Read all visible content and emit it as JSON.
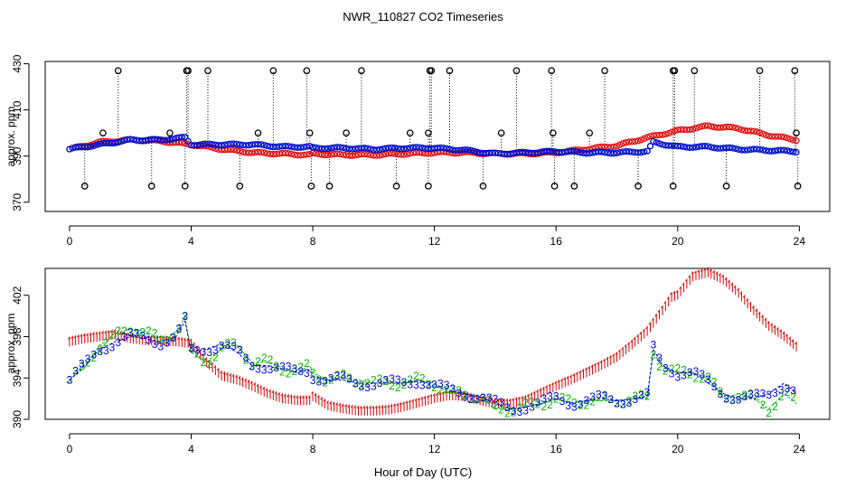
{
  "chart_data": {
    "title": "NWR_110827  CO2 Timeseries",
    "xlabel": "Hour of Day (UTC)",
    "xlim": [
      -0.8,
      25
    ],
    "xticks": [
      "0",
      "4",
      "8",
      "12",
      "16",
      "20",
      "24"
    ],
    "colors": {
      "red": "#e00000",
      "green": "#00b400",
      "blue": "#0000e0",
      "black": "#000000",
      "cyan": "#00c8c8"
    },
    "panels": [
      {
        "type": "scatter",
        "ylabel": "approx. ppm",
        "ylim": [
          366,
          431
        ],
        "yticks": [
          "370",
          "390",
          "410",
          "430"
        ],
        "series": [
          {
            "name": "red",
            "marker": "circle",
            "x": [
              0,
              1,
              2,
              3,
              4,
              5,
              6,
              7,
              7.9,
              8,
              9,
              10,
              11,
              12,
              13,
              14,
              15,
              16,
              17,
              18,
              19,
              20,
              21,
              22,
              23,
              23.9
            ],
            "y": [
              393,
              396,
              397,
              396.5,
              395,
              393,
              391.5,
              391,
              390.5,
              391,
              390.5,
              390.5,
              391,
              391.5,
              391.5,
              391,
              391,
              391.5,
              393,
              394.5,
              398,
              401,
              403,
              402,
              399,
              397
            ]
          },
          {
            "name": "green",
            "marker": "circle",
            "x": [
              0,
              1,
              2,
              3,
              3.8,
              4,
              5,
              6,
              7,
              7.9,
              8,
              9,
              10,
              11,
              12,
              13,
              14,
              15,
              16,
              17,
              18,
              19,
              19.2,
              20,
              21,
              22,
              23,
              23.9
            ],
            "y": [
              393,
              395,
              397,
              397,
              398,
              395,
              395,
              395,
              394,
              394,
              393.5,
              393.5,
              393,
              393.5,
              393.5,
              392.5,
              391,
              391.5,
              392,
              391.5,
              391.5,
              392,
              396,
              394,
              394,
              393,
              392.5,
              392
            ]
          },
          {
            "name": "blue",
            "marker": "circle",
            "x": [
              0,
              1,
              2,
              3,
              3.8,
              4,
              5,
              6,
              7,
              7.9,
              8,
              9,
              10,
              11,
              12,
              13,
              14,
              15,
              16,
              17,
              18,
              19,
              19.2,
              20,
              21,
              22,
              23,
              23.9
            ],
            "y": [
              393,
              395,
              397,
              397,
              398,
              395,
              395,
              395,
              394,
              394,
              393.5,
              393.5,
              393,
              393.5,
              393.5,
              392.5,
              391,
              391.5,
              392,
              391.5,
              391.5,
              392,
              396,
              394,
              394,
              393,
              392.5,
              392
            ]
          },
          {
            "name": "spikes",
            "marker": "circle-black",
            "x": [
              1.6,
              3.85,
              3.9,
              4.55,
              6.7,
              7.8,
              9.6,
              11.85,
              11.9,
              12.5,
              14.7,
              15.85,
              17.6,
              19.85,
              19.9,
              20.55,
              22.7,
              23.85
            ],
            "y": [
              427,
              427,
              427,
              427,
              427,
              427,
              427,
              427,
              427,
              427,
              427,
              427,
              427,
              427,
              427,
              427,
              427,
              427
            ]
          },
          {
            "name": "spikes-mid",
            "marker": "circle-black",
            "x": [
              1.1,
              3.3,
              6.2,
              7.9,
              9.1,
              11.2,
              11.8,
              14.2,
              15.9,
              17.1,
              23.9
            ],
            "y": [
              400,
              400,
              400,
              400,
              400,
              400,
              400,
              400,
              400,
              400,
              400
            ]
          },
          {
            "name": "spikes-low",
            "marker": "circle-black",
            "x": [
              0.5,
              2.7,
              3.8,
              5.6,
              7.95,
              8.55,
              10.75,
              11.8,
              13.6,
              15.95,
              16.6,
              18.7,
              19.85,
              21.6,
              23.95
            ],
            "y": [
              377,
              377,
              377,
              377,
              377,
              377,
              377,
              377,
              377,
              377,
              377,
              377,
              377,
              377,
              377
            ]
          }
        ]
      },
      {
        "type": "scatter",
        "ylabel": "approx. ppm",
        "ylim": [
          390,
          404.6
        ],
        "yticks": [
          "390",
          "394",
          "398",
          "402"
        ],
        "series": [
          {
            "name": "red",
            "marker": "1",
            "x": [
              0,
              0.5,
              1,
              1.5,
              2,
              2.5,
              3,
              3.5,
              4,
              4.5,
              5,
              5.5,
              6,
              6.5,
              7,
              7.5,
              7.9,
              8,
              8.5,
              9,
              9.5,
              10,
              10.5,
              11,
              11.5,
              12,
              12.5,
              13,
              13.5,
              14,
              14.5,
              15,
              15.5,
              16,
              16.5,
              17,
              17.5,
              18,
              18.5,
              19,
              19.5,
              19.8,
              20,
              20.5,
              21,
              21.5,
              22,
              22.5,
              23,
              23.5,
              23.9
            ],
            "y": [
              397.5,
              397.8,
              398,
              398.2,
              397.8,
              397.6,
              397.6,
              397.5,
              397.3,
              395.5,
              394.2,
              393.8,
              393.2,
              392.5,
              392,
              391.8,
              391.8,
              392.2,
              391.3,
              391,
              390.8,
              390.8,
              390.9,
              391.2,
              391.6,
              392,
              392.3,
              392.2,
              391.8,
              391.5,
              391.5,
              391.8,
              392.5,
              393.2,
              393.8,
              394.5,
              395.2,
              396,
              397.2,
              398.5,
              400.5,
              401.8,
              402,
              403.8,
              404.2,
              403.5,
              402.2,
              400.5,
              399,
              398,
              397
            ]
          },
          {
            "name": "green",
            "marker": "2",
            "x": [
              0,
              0.5,
              1,
              1.5,
              2,
              2.5,
              3,
              3.5,
              3.8,
              4,
              4.5,
              5,
              5.5,
              6,
              6.5,
              7,
              7.5,
              7.9,
              8,
              8.5,
              9,
              9.5,
              10,
              10.5,
              11,
              11.5,
              12,
              12.5,
              13,
              13.5,
              14,
              14.5,
              15,
              15.5,
              16,
              16.5,
              17,
              17.5,
              18,
              18.5,
              19,
              19.2,
              19.5,
              20,
              20.5,
              21,
              21.5,
              22,
              22.5,
              23,
              23.5,
              23.9
            ],
            "y": [
              393.8,
              395,
              397.2,
              398,
              398.8,
              398.5,
              397.5,
              398.5,
              399.8,
              396.5,
              395.5,
              396.8,
              397.2,
              395.5,
              395.5,
              395,
              394.5,
              395.2,
              394.5,
              393.8,
              394,
              393.8,
              393.5,
              393.5,
              393.5,
              393.8,
              393.5,
              392.5,
              392.5,
              392.2,
              391,
              391,
              391.2,
              391.5,
              392,
              391.5,
              391.8,
              391.8,
              391.8,
              392,
              392,
              396.5,
              395,
              394.5,
              394.5,
              394,
              392,
              392.5,
              392,
              391,
              392.5,
              391.5
            ]
          },
          {
            "name": "blue",
            "marker": "3",
            "x": [
              0,
              0.5,
              1,
              1.5,
              2,
              2.5,
              3,
              3.5,
              3.8,
              4,
              4.5,
              5,
              5.5,
              6,
              6.5,
              7,
              7.5,
              7.9,
              8,
              8.5,
              9,
              9.5,
              10,
              10.5,
              11,
              11.5,
              12,
              12.5,
              13,
              13.5,
              14,
              14.5,
              15,
              15.5,
              16,
              16.5,
              17,
              17.5,
              18,
              18.5,
              19,
              19.2,
              19.5,
              20,
              20.5,
              21,
              21.5,
              22,
              22.5,
              23,
              23.5,
              23.9
            ],
            "y": [
              393.8,
              395.2,
              396.8,
              397.5,
              398,
              397.8,
              397.5,
              398,
              399.5,
              396.5,
              396.8,
              397.3,
              396.5,
              395.2,
              395.2,
              394.8,
              394.5,
              394.8,
              394.2,
              393.8,
              393.8,
              393.5,
              393.5,
              393.5,
              393.5,
              393.8,
              393.2,
              392.8,
              392.5,
              392.2,
              391.5,
              391,
              391.2,
              391.5,
              392,
              391.6,
              391.8,
              392,
              391.8,
              392,
              392.2,
              396.8,
              395.2,
              394.5,
              394.5,
              393.5,
              392.5,
              392,
              392,
              392.5,
              393.5,
              392.5
            ]
          }
        ]
      }
    ]
  }
}
